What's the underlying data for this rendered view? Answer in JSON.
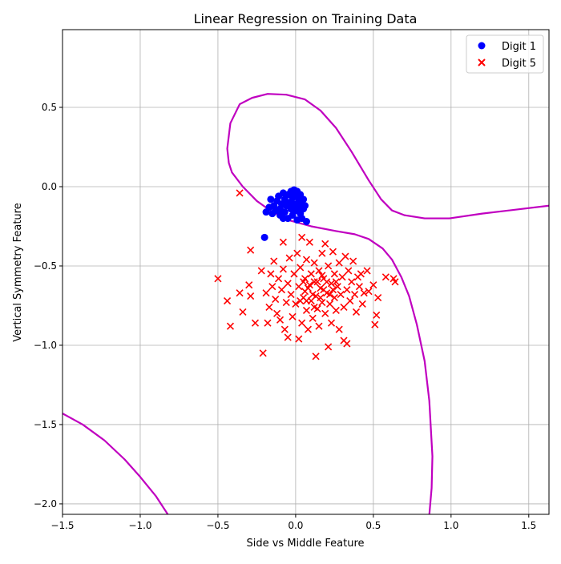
{
  "chart_data": {
    "type": "scatter",
    "title": "Linear Regression on Training Data",
    "xlabel": "Side vs Middle Feature",
    "ylabel": "Vertical Symmetry Feature",
    "xlim": [
      -1.5,
      1.63
    ],
    "ylim": [
      -2.066,
      0.99
    ],
    "xticks": [
      -1.5,
      -1.0,
      -0.5,
      0.0,
      0.5,
      1.0,
      1.5
    ],
    "xtick_labels": [
      "−1.5",
      "−1.0",
      "−0.5",
      "0.0",
      "0.5",
      "1.0",
      "1.5"
    ],
    "yticks": [
      0.5,
      0.0,
      -0.5,
      -1.0,
      -1.5,
      -2.0
    ],
    "ytick_labels": [
      "0.5",
      "0.0",
      "−0.5",
      "−1.0",
      "−1.5",
      "−2.0"
    ],
    "grid": true,
    "legend_position": "top-right",
    "series": [
      {
        "name": "Digit 1",
        "marker": "circle",
        "color": "#0000ff",
        "points": [
          [
            -0.2,
            -0.32
          ],
          [
            -0.17,
            -0.13
          ],
          [
            -0.16,
            -0.08
          ],
          [
            -0.15,
            -0.17
          ],
          [
            -0.14,
            -0.12
          ],
          [
            -0.13,
            -0.15
          ],
          [
            -0.12,
            -0.09
          ],
          [
            -0.11,
            -0.06
          ],
          [
            -0.1,
            -0.14
          ],
          [
            -0.1,
            -0.18
          ],
          [
            -0.09,
            -0.11
          ],
          [
            -0.08,
            -0.04
          ],
          [
            -0.07,
            -0.08
          ],
          [
            -0.07,
            -0.16
          ],
          [
            -0.06,
            -0.12
          ],
          [
            -0.05,
            -0.05
          ],
          [
            -0.05,
            -0.2
          ],
          [
            -0.04,
            -0.1
          ],
          [
            -0.03,
            -0.03
          ],
          [
            -0.03,
            -0.14
          ],
          [
            -0.02,
            -0.07
          ],
          [
            -0.02,
            -0.18
          ],
          [
            -0.01,
            -0.02
          ],
          [
            -0.01,
            -0.11
          ],
          [
            0.0,
            -0.06
          ],
          [
            0.0,
            -0.15
          ],
          [
            0.01,
            -0.03
          ],
          [
            0.01,
            -0.21
          ],
          [
            0.02,
            -0.09
          ],
          [
            0.02,
            -0.13
          ],
          [
            0.03,
            -0.05
          ],
          [
            0.03,
            -0.17
          ],
          [
            0.04,
            -0.1
          ],
          [
            0.04,
            -0.2
          ],
          [
            0.05,
            -0.08
          ],
          [
            0.05,
            -0.14
          ],
          [
            0.06,
            -0.12
          ],
          [
            0.07,
            -0.22
          ],
          [
            -0.19,
            -0.16
          ],
          [
            -0.08,
            -0.2
          ]
        ]
      },
      {
        "name": "Digit 5",
        "marker": "x",
        "color": "#ff0000",
        "points": [
          [
            -0.5,
            -0.58
          ],
          [
            -0.44,
            -0.72
          ],
          [
            -0.42,
            -0.88
          ],
          [
            -0.36,
            -0.04
          ],
          [
            -0.36,
            -0.67
          ],
          [
            -0.34,
            -0.79
          ],
          [
            -0.3,
            -0.62
          ],
          [
            -0.29,
            -0.4
          ],
          [
            -0.29,
            -0.69
          ],
          [
            -0.26,
            -0.86
          ],
          [
            -0.22,
            -0.53
          ],
          [
            -0.21,
            -1.05
          ],
          [
            -0.19,
            -0.67
          ],
          [
            -0.18,
            -0.86
          ],
          [
            -0.17,
            -0.76
          ],
          [
            -0.16,
            -0.55
          ],
          [
            -0.15,
            -0.63
          ],
          [
            -0.14,
            -0.47
          ],
          [
            -0.13,
            -0.71
          ],
          [
            -0.12,
            -0.8
          ],
          [
            -0.11,
            -0.58
          ],
          [
            -0.1,
            -0.84
          ],
          [
            -0.09,
            -0.65
          ],
          [
            -0.08,
            -0.35
          ],
          [
            -0.08,
            -0.52
          ],
          [
            -0.07,
            -0.9
          ],
          [
            -0.06,
            -0.73
          ],
          [
            -0.05,
            -0.61
          ],
          [
            -0.05,
            -0.95
          ],
          [
            -0.04,
            -0.45
          ],
          [
            -0.03,
            -0.68
          ],
          [
            -0.02,
            -0.82
          ],
          [
            -0.01,
            -0.55
          ],
          [
            0.0,
            -0.74
          ],
          [
            0.01,
            -0.42
          ],
          [
            0.02,
            -0.63
          ],
          [
            0.02,
            -0.96
          ],
          [
            0.03,
            -0.51
          ],
          [
            0.04,
            -0.32
          ],
          [
            0.04,
            -0.86
          ],
          [
            0.05,
            -0.7
          ],
          [
            0.06,
            -0.58
          ],
          [
            0.07,
            -0.46
          ],
          [
            0.07,
            -0.78
          ],
          [
            0.08,
            -0.64
          ],
          [
            0.08,
            -0.9
          ],
          [
            0.09,
            -0.35
          ],
          [
            0.1,
            -0.55
          ],
          [
            0.1,
            -0.72
          ],
          [
            0.11,
            -0.83
          ],
          [
            0.12,
            -0.6
          ],
          [
            0.12,
            -0.48
          ],
          [
            0.13,
            -1.07
          ],
          [
            0.13,
            -0.69
          ],
          [
            0.14,
            -0.77
          ],
          [
            0.15,
            -0.53
          ],
          [
            0.15,
            -0.88
          ],
          [
            0.16,
            -0.64
          ],
          [
            0.17,
            -0.42
          ],
          [
            0.17,
            -0.73
          ],
          [
            0.18,
            -0.58
          ],
          [
            0.19,
            -0.8
          ],
          [
            0.19,
            -0.36
          ],
          [
            0.2,
            -0.67
          ],
          [
            0.21,
            -0.5
          ],
          [
            0.21,
            -1.01
          ],
          [
            0.22,
            -0.74
          ],
          [
            0.23,
            -0.61
          ],
          [
            0.23,
            -0.86
          ],
          [
            0.24,
            -0.41
          ],
          [
            0.25,
            -0.55
          ],
          [
            0.25,
            -0.7
          ],
          [
            0.26,
            -0.78
          ],
          [
            0.27,
            -0.63
          ],
          [
            0.28,
            -0.9
          ],
          [
            0.28,
            -0.48
          ],
          [
            0.29,
            -0.68
          ],
          [
            0.3,
            -0.57
          ],
          [
            0.31,
            -0.97
          ],
          [
            0.31,
            -0.76
          ],
          [
            0.32,
            -0.44
          ],
          [
            0.33,
            -0.65
          ],
          [
            0.33,
            -0.99
          ],
          [
            0.34,
            -0.53
          ],
          [
            0.35,
            -0.72
          ],
          [
            0.36,
            -0.6
          ],
          [
            0.37,
            -0.47
          ],
          [
            0.38,
            -0.68
          ],
          [
            0.39,
            -0.79
          ],
          [
            0.4,
            -0.57
          ],
          [
            0.41,
            -0.63
          ],
          [
            0.42,
            -0.55
          ],
          [
            0.43,
            -0.74
          ],
          [
            0.44,
            -0.67
          ],
          [
            0.46,
            -0.53
          ],
          [
            0.47,
            -0.66
          ],
          [
            0.5,
            -0.62
          ],
          [
            0.51,
            -0.87
          ],
          [
            0.52,
            -0.81
          ],
          [
            0.53,
            -0.7
          ],
          [
            0.58,
            -0.57
          ],
          [
            0.63,
            -0.58
          ],
          [
            0.64,
            -0.6
          ],
          [
            0.06,
            -0.66
          ],
          [
            0.09,
            -0.62
          ],
          [
            0.11,
            -0.68
          ],
          [
            0.14,
            -0.6
          ],
          [
            0.16,
            -0.7
          ],
          [
            0.18,
            -0.65
          ],
          [
            0.2,
            -0.6
          ],
          [
            0.22,
            -0.68
          ],
          [
            0.24,
            -0.65
          ],
          [
            0.05,
            -0.6
          ],
          [
            0.07,
            -0.72
          ],
          [
            0.12,
            -0.76
          ],
          [
            0.17,
            -0.56
          ],
          [
            0.03,
            -0.72
          ],
          [
            0.26,
            -0.6
          ]
        ]
      }
    ],
    "decision_boundary": {
      "color": "#c000c0",
      "branches": [
        [
          [
            1.63,
            -0.12
          ],
          [
            1.2,
            -0.17
          ],
          [
            0.99,
            -0.2
          ],
          [
            0.83,
            -0.2
          ],
          [
            0.7,
            -0.18
          ],
          [
            0.62,
            -0.15
          ],
          [
            0.55,
            -0.08
          ],
          [
            0.47,
            0.04
          ],
          [
            0.36,
            0.22
          ],
          [
            0.26,
            0.37
          ],
          [
            0.16,
            0.48
          ],
          [
            0.06,
            0.55
          ],
          [
            -0.06,
            0.58
          ],
          [
            -0.18,
            0.585
          ],
          [
            -0.28,
            0.56
          ],
          [
            -0.36,
            0.52
          ],
          [
            -0.42,
            0.4
          ],
          [
            -0.44,
            0.24
          ],
          [
            -0.43,
            0.15
          ],
          [
            -0.41,
            0.09
          ],
          [
            -0.34,
            0.0
          ],
          [
            -0.25,
            -0.09
          ],
          [
            -0.15,
            -0.16
          ],
          [
            -0.05,
            -0.21
          ],
          [
            0.1,
            -0.25
          ],
          [
            0.26,
            -0.28
          ],
          [
            0.38,
            -0.3
          ],
          [
            0.47,
            -0.33
          ],
          [
            0.56,
            -0.39
          ],
          [
            0.62,
            -0.46
          ],
          [
            0.68,
            -0.57
          ],
          [
            0.73,
            -0.69
          ],
          [
            0.78,
            -0.87
          ],
          [
            0.83,
            -1.1
          ],
          [
            0.86,
            -1.35
          ],
          [
            0.88,
            -1.7
          ],
          [
            0.875,
            -1.9
          ],
          [
            0.86,
            -2.07
          ]
        ],
        [
          [
            -1.5,
            -1.43
          ],
          [
            -1.37,
            -1.5
          ],
          [
            -1.23,
            -1.6
          ],
          [
            -1.1,
            -1.72
          ],
          [
            -1.0,
            -1.83
          ],
          [
            -0.9,
            -1.95
          ],
          [
            -0.82,
            -2.07
          ]
        ]
      ]
    }
  }
}
